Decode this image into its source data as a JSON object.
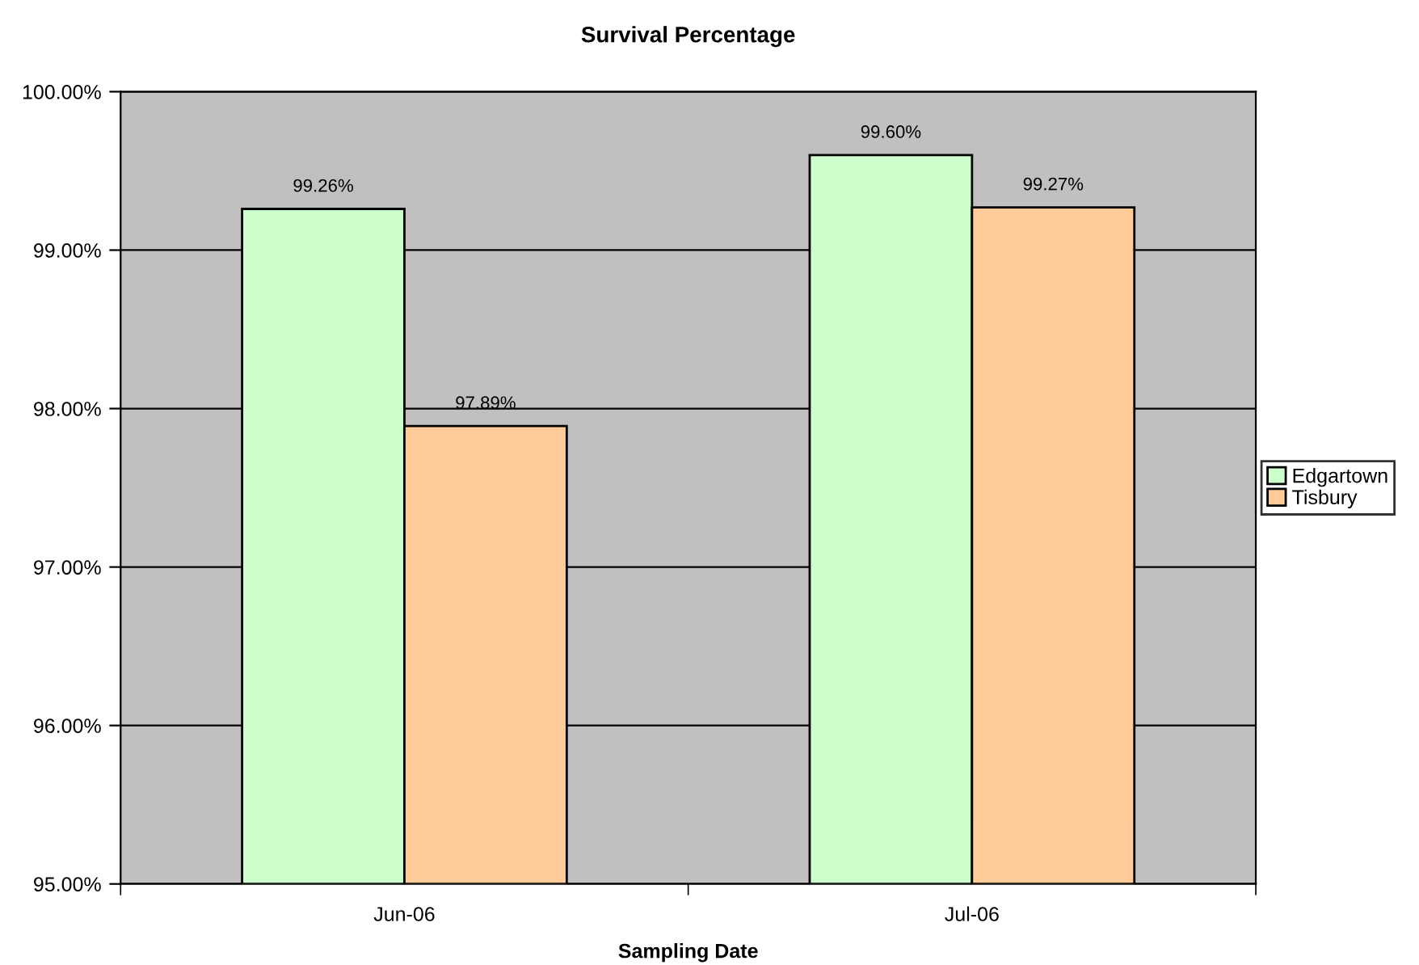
{
  "chart_data": {
    "type": "bar",
    "title": "Survival Percentage",
    "xlabel": "Sampling Date",
    "categories": [
      "Jun-06",
      "Jul-06"
    ],
    "series": [
      {
        "name": "Edgartown",
        "color": "#ccffcc",
        "values": [
          99.26,
          99.6
        ],
        "value_labels": [
          "99.26%",
          "99.60%"
        ]
      },
      {
        "name": "Tisbury",
        "color": "#ffcc99",
        "values": [
          97.89,
          99.27
        ],
        "value_labels": [
          "97.89%",
          "99.27%"
        ]
      }
    ],
    "ylim": [
      95,
      100
    ],
    "yticks": [
      {
        "value": 95,
        "label": "95.00%"
      },
      {
        "value": 96,
        "label": "96.00%"
      },
      {
        "value": 97,
        "label": "97.00%"
      },
      {
        "value": 98,
        "label": "98.00%"
      },
      {
        "value": 99,
        "label": "99.00%"
      },
      {
        "value": 100,
        "label": "100.00%"
      }
    ],
    "grid": "y",
    "legend": "right"
  }
}
